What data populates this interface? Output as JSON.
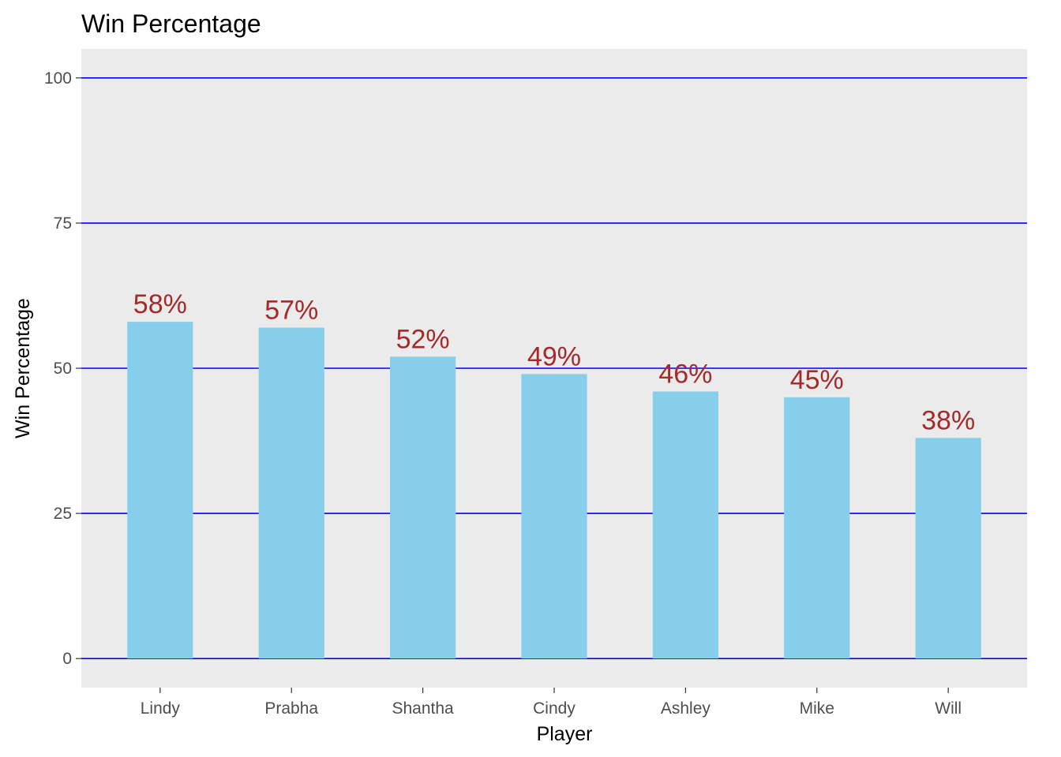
{
  "chart_data": {
    "type": "bar",
    "title": "Win Percentage",
    "xlabel": "Player",
    "ylabel": "Win Percentage",
    "categories": [
      "Lindy",
      "Prabha",
      "Shantha",
      "Cindy",
      "Ashley",
      "Mike",
      "Will"
    ],
    "values": [
      58,
      57,
      52,
      49,
      46,
      45,
      38
    ],
    "data_labels": [
      "58%",
      "57%",
      "52%",
      "49%",
      "46%",
      "45%",
      "38%"
    ],
    "yticks": [
      0,
      25,
      50,
      75,
      100
    ],
    "ytick_labels": [
      "0",
      "25",
      "50",
      "75",
      "100"
    ],
    "ylim": [
      -5,
      105
    ],
    "grid": "horizontal major lines",
    "legend": "none",
    "colors": {
      "bar": "#87CEEB",
      "grid": "#0000FF",
      "panel": "#EBEBEB",
      "data_label": "#A52A2A"
    }
  }
}
